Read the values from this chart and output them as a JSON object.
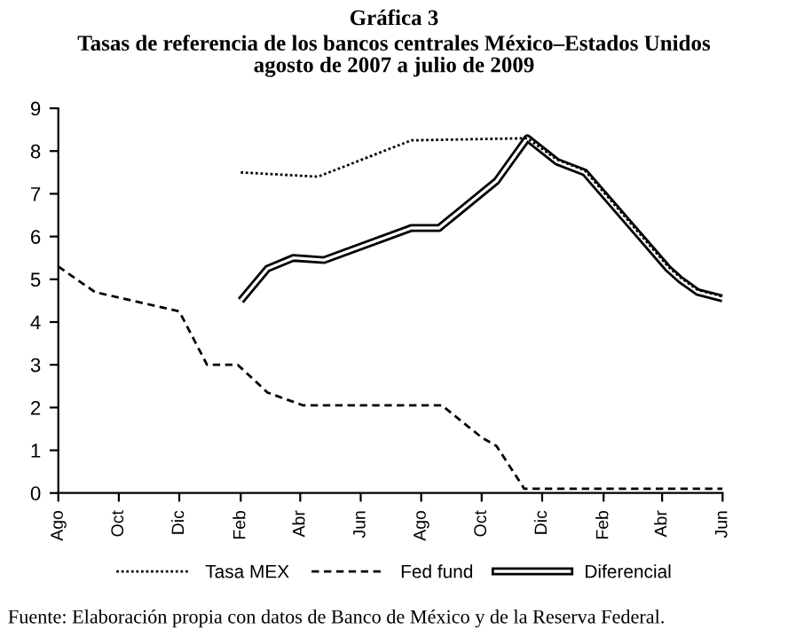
{
  "chart_data": {
    "type": "line",
    "title": "Gráfica 3",
    "subtitle": "Tasas de referencia de los bancos centrales México–Estados Unidos\nagosto de 2007 a julio de 2009",
    "series": [
      {
        "name": "Tasa MEX",
        "color": "#000000",
        "line_style": "dotted",
        "x": [
          "2008-02-01",
          "2008-04-19",
          "2008-07-22",
          "2008-11-16",
          "2008-12-16",
          "2009-01-13",
          "2009-04-07",
          "2009-04-19",
          "2009-05-07",
          "2009-06-01"
        ],
        "values": [
          7.5,
          7.4,
          8.25,
          8.3,
          7.8,
          7.55,
          5.3,
          5.05,
          4.75,
          4.6
        ]
      },
      {
        "name": "Fed fund",
        "color": "#000000",
        "line_style": "dashed",
        "x": [
          "2007-08-01",
          "2007-09-07",
          "2007-12-01",
          "2007-12-29",
          "2008-01-29",
          "2008-02-28",
          "2008-04-04",
          "2008-08-22",
          "2008-10-01",
          "2008-10-16",
          "2008-11-13",
          "2009-06-01"
        ],
        "values": [
          5.3,
          4.7,
          4.25,
          3.0,
          3.0,
          2.35,
          2.05,
          2.05,
          1.3,
          1.1,
          0.1,
          0.1
        ]
      },
      {
        "name": "Diferencial",
        "color": "#000000",
        "line_style": "solid",
        "x": [
          "2008-02-01",
          "2008-02-28",
          "2008-03-25",
          "2008-04-25",
          "2008-07-22",
          "2008-08-19",
          "2008-10-16",
          "2008-11-16",
          "2008-12-16",
          "2009-01-13",
          "2009-04-07",
          "2009-04-19",
          "2009-05-07",
          "2009-06-01"
        ],
        "values": [
          4.5,
          5.25,
          5.5,
          5.45,
          6.2,
          6.2,
          7.3,
          8.3,
          7.75,
          7.5,
          5.25,
          5.0,
          4.7,
          4.55
        ]
      }
    ],
    "xlim": [
      "2007-08-01",
      "2009-06-01"
    ],
    "xticks": [
      {
        "value": "2007-08-01",
        "label": "Ago"
      },
      {
        "value": "2007-10-01",
        "label": "Oct"
      },
      {
        "value": "2007-12-01",
        "label": "Dic"
      },
      {
        "value": "2008-02-01",
        "label": "Feb"
      },
      {
        "value": "2008-04-01",
        "label": "Abr"
      },
      {
        "value": "2008-06-01",
        "label": "Jun"
      },
      {
        "value": "2008-08-01",
        "label": "Ago"
      },
      {
        "value": "2008-10-01",
        "label": "Oct"
      },
      {
        "value": "2008-12-01",
        "label": "Dic"
      },
      {
        "value": "2009-02-01",
        "label": "Feb"
      },
      {
        "value": "2009-04-01",
        "label": "Abr"
      },
      {
        "value": "2009-06-01",
        "label": "Jun"
      }
    ],
    "ylim": [
      0,
      9
    ],
    "yticks": [
      0,
      1,
      2,
      3,
      4,
      5,
      6,
      7,
      8,
      9
    ],
    "legend": "bottom",
    "annotations": [
      "Fuente: Elaboración propia con datos de Banco de México y de la Reserva Federal."
    ]
  }
}
